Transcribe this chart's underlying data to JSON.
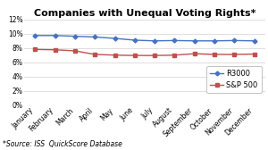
{
  "title": "Companies with Unequal Voting Rights*",
  "footnote": "*Source: ISS  QuickScore Database",
  "months": [
    "January",
    "February",
    "March",
    "April",
    "May",
    "June",
    "July",
    "August",
    "September",
    "October",
    "November",
    "December"
  ],
  "r3000": [
    9.75,
    9.75,
    9.65,
    9.55,
    9.35,
    9.1,
    9.0,
    9.05,
    9.0,
    9.0,
    9.05,
    9.0
  ],
  "sp500": [
    7.8,
    7.75,
    7.6,
    7.1,
    7.0,
    6.95,
    6.95,
    7.0,
    7.2,
    7.1,
    7.1,
    7.15
  ],
  "r3000_color": "#4472C4",
  "sp500_color": "#C0504D",
  "background_color": "#FFFFFF",
  "grid_color": "#D9D9D9",
  "ylim": [
    0,
    12
  ],
  "yticks": [
    0,
    2,
    4,
    6,
    8,
    10,
    12
  ],
  "legend_labels": [
    "R3000",
    "S&P 500"
  ],
  "title_fontsize": 8,
  "footnote_fontsize": 5.5,
  "axis_fontsize": 5.5,
  "legend_fontsize": 6
}
